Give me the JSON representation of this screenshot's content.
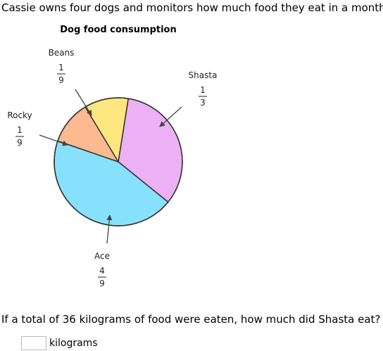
{
  "problem": {
    "intro": "Cassie owns four dogs and monitors how much food they eat in a month.",
    "question": "If a total of 36 kilograms of food were eaten, how much did Shasta eat?",
    "answer_value": "",
    "unit": "kilograms"
  },
  "chart_data": {
    "type": "pie",
    "title": "Dog food consumption",
    "slices": [
      {
        "name": "Shasta",
        "num": "1",
        "den": "3",
        "value": 0.3333,
        "color": "#ebb1f4"
      },
      {
        "name": "Ace",
        "num": "4",
        "den": "9",
        "value": 0.4444,
        "color": "#87e1fc"
      },
      {
        "name": "Rocky",
        "num": "1",
        "den": "9",
        "value": 0.1111,
        "color": "#fdb98f"
      },
      {
        "name": "Beans",
        "num": "1",
        "den": "9",
        "value": 0.1111,
        "color": "#fde57f"
      }
    ]
  }
}
